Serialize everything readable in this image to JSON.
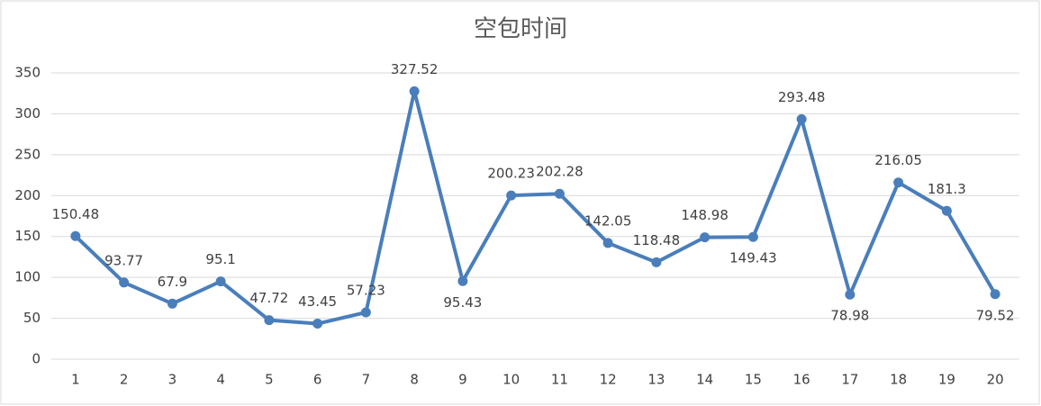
{
  "chart_data": {
    "type": "line",
    "title": "空包时间",
    "categories": [
      "1",
      "2",
      "3",
      "4",
      "5",
      "6",
      "7",
      "8",
      "9",
      "10",
      "11",
      "12",
      "13",
      "14",
      "15",
      "16",
      "17",
      "18",
      "19",
      "20"
    ],
    "values": [
      150.48,
      93.77,
      67.9,
      95.1,
      47.72,
      43.45,
      57.23,
      327.52,
      95.43,
      200.23,
      202.28,
      142.05,
      118.48,
      148.98,
      149.43,
      293.48,
      78.98,
      216.05,
      181.3,
      79.52
    ],
    "color": "#4a7ebb",
    "ylim": [
      0,
      350
    ],
    "yticks": [
      0,
      50,
      100,
      150,
      200,
      250,
      300,
      350
    ],
    "grid": true
  }
}
